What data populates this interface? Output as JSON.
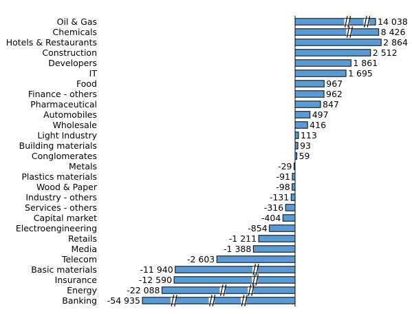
{
  "chart_data": {
    "type": "bar",
    "orientation": "horizontal",
    "title": "",
    "xlabel": "",
    "ylabel": "",
    "grid": false,
    "legend": "none",
    "axis_breaks": true,
    "bar_color": "#5b9bd5",
    "categories": [
      "Oil & Gas",
      "Chemicals",
      "Hotels & Restaurants",
      "Construction",
      "Developers",
      "IT",
      "Food",
      "Finance - others",
      "Pharmaceutical",
      "Automobiles",
      "Wholesale",
      "Light Industry",
      "Building materials",
      "Conglomerates",
      "Metals",
      "Plastics materials",
      "Wood & Paper",
      "Industry - others",
      "Services - others",
      "Capital market",
      "Electroengineering",
      "Retails",
      "Media",
      "Telecom",
      "Basic materials",
      "Insurance",
      "Energy",
      "Banking"
    ],
    "values": [
      14038,
      8426,
      2864,
      2512,
      1861,
      1695,
      967,
      962,
      847,
      497,
      416,
      113,
      93,
      59,
      -29,
      -91,
      -98,
      -131,
      -316,
      -404,
      -854,
      -1211,
      -1388,
      -2603,
      -11940,
      -12590,
      -22088,
      -54935
    ],
    "value_labels": [
      "14 038",
      "8 426",
      "2 864",
      "2 512",
      "1 861",
      "1 695",
      "967",
      "962",
      "847",
      "497",
      "416",
      "113",
      "93",
      "59",
      "-29",
      "-91",
      "-98",
      "-131",
      "-316",
      "-404",
      "-854",
      "-1 211",
      "-1 388",
      "-2 603",
      "-11 940",
      "-12 590",
      "-22 088",
      "-54 935"
    ]
  }
}
